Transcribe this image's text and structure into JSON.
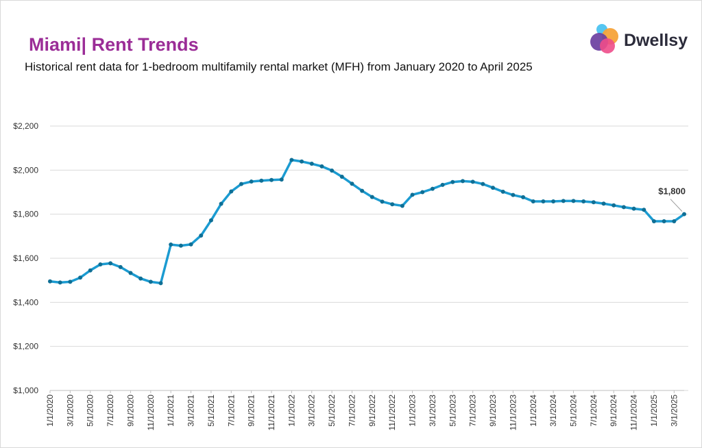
{
  "header": {
    "title": "Miami| Rent Trends",
    "subtitle": "Historical rent data for 1-bedroom multifamily rental market (MFH) from January 2020 to April 2025"
  },
  "brand": {
    "name": "Dwellsy",
    "logo_icon": "overlapping-circles-logo-icon",
    "colors": [
      "#4cc3f0",
      "#f6a33a",
      "#6a3fa0",
      "#ee4c8a"
    ]
  },
  "colors": {
    "title": "#9b2d97",
    "line": "#1b9bd1",
    "marker": "#0f6f95",
    "grid": "#d9d9d9"
  },
  "chart_data": {
    "type": "line",
    "x": [
      "1/1/2020",
      "2/1/2020",
      "3/1/2020",
      "4/1/2020",
      "5/1/2020",
      "6/1/2020",
      "7/1/2020",
      "8/1/2020",
      "9/1/2020",
      "10/1/2020",
      "11/1/2020",
      "12/1/2020",
      "1/1/2021",
      "2/1/2021",
      "3/1/2021",
      "4/1/2021",
      "5/1/2021",
      "6/1/2021",
      "7/1/2021",
      "8/1/2021",
      "9/1/2021",
      "10/1/2021",
      "11/1/2021",
      "12/1/2021",
      "1/1/2022",
      "2/1/2022",
      "3/1/2022",
      "4/1/2022",
      "5/1/2022",
      "6/1/2022",
      "7/1/2022",
      "8/1/2022",
      "9/1/2022",
      "10/1/2022",
      "11/1/2022",
      "12/1/2022",
      "1/1/2023",
      "2/1/2023",
      "3/1/2023",
      "4/1/2023",
      "5/1/2023",
      "6/1/2023",
      "7/1/2023",
      "8/1/2023",
      "9/1/2023",
      "10/1/2023",
      "11/1/2023",
      "12/1/2023",
      "1/1/2024",
      "2/1/2024",
      "3/1/2024",
      "4/1/2024",
      "5/1/2024",
      "6/1/2024",
      "7/1/2024",
      "8/1/2024",
      "9/1/2024",
      "10/1/2024",
      "11/1/2024",
      "12/1/2024",
      "1/1/2025",
      "2/1/2025",
      "3/1/2025",
      "4/1/2025"
    ],
    "series": [
      {
        "values": [
          1495,
          1490,
          1493,
          1512,
          1545,
          1572,
          1577,
          1560,
          1533,
          1508,
          1493,
          1487,
          1662,
          1657,
          1663,
          1703,
          1772,
          1847,
          1903,
          1937,
          1948,
          1952,
          1955,
          1957,
          2046,
          2039,
          2029,
          2017,
          1998,
          1970,
          1938,
          1906,
          1878,
          1857,
          1845,
          1838,
          1888,
          1900,
          1915,
          1933,
          1946,
          1950,
          1947,
          1937,
          1920,
          1902,
          1887,
          1877,
          1858,
          1858,
          1858,
          1860,
          1860,
          1858,
          1854,
          1848,
          1840,
          1832,
          1825,
          1820,
          1768,
          1768,
          1768,
          1800
        ]
      }
    ],
    "tick_labels": [
      "1/1/2020",
      "3/1/2020",
      "5/1/2020",
      "7/1/2020",
      "9/1/2020",
      "11/1/2020",
      "1/1/2021",
      "3/1/2021",
      "5/1/2021",
      "7/1/2021",
      "9/1/2021",
      "11/1/2021",
      "1/1/2022",
      "3/1/2022",
      "5/1/2022",
      "7/1/2022",
      "9/1/2022",
      "11/1/2022",
      "1/1/2023",
      "3/1/2023",
      "5/1/2023",
      "7/1/2023",
      "9/1/2023",
      "11/1/2023",
      "1/1/2024",
      "3/1/2024",
      "5/1/2024",
      "7/1/2024",
      "9/1/2024",
      "11/1/2024",
      "1/1/2025",
      "3/1/2025"
    ],
    "yticks": [
      1000,
      1200,
      1400,
      1600,
      1800,
      2000,
      2200
    ],
    "ytick_labels": [
      "$1,000",
      "$1,200",
      "$1,400",
      "$1,600",
      "$1,800",
      "$2,000",
      "$2,200"
    ],
    "ylim": [
      1000,
      2200
    ],
    "grid": true,
    "annotation": {
      "text": "$1,800",
      "index": 63
    },
    "title": "Miami| Rent Trends",
    "xlabel": "",
    "ylabel": ""
  }
}
